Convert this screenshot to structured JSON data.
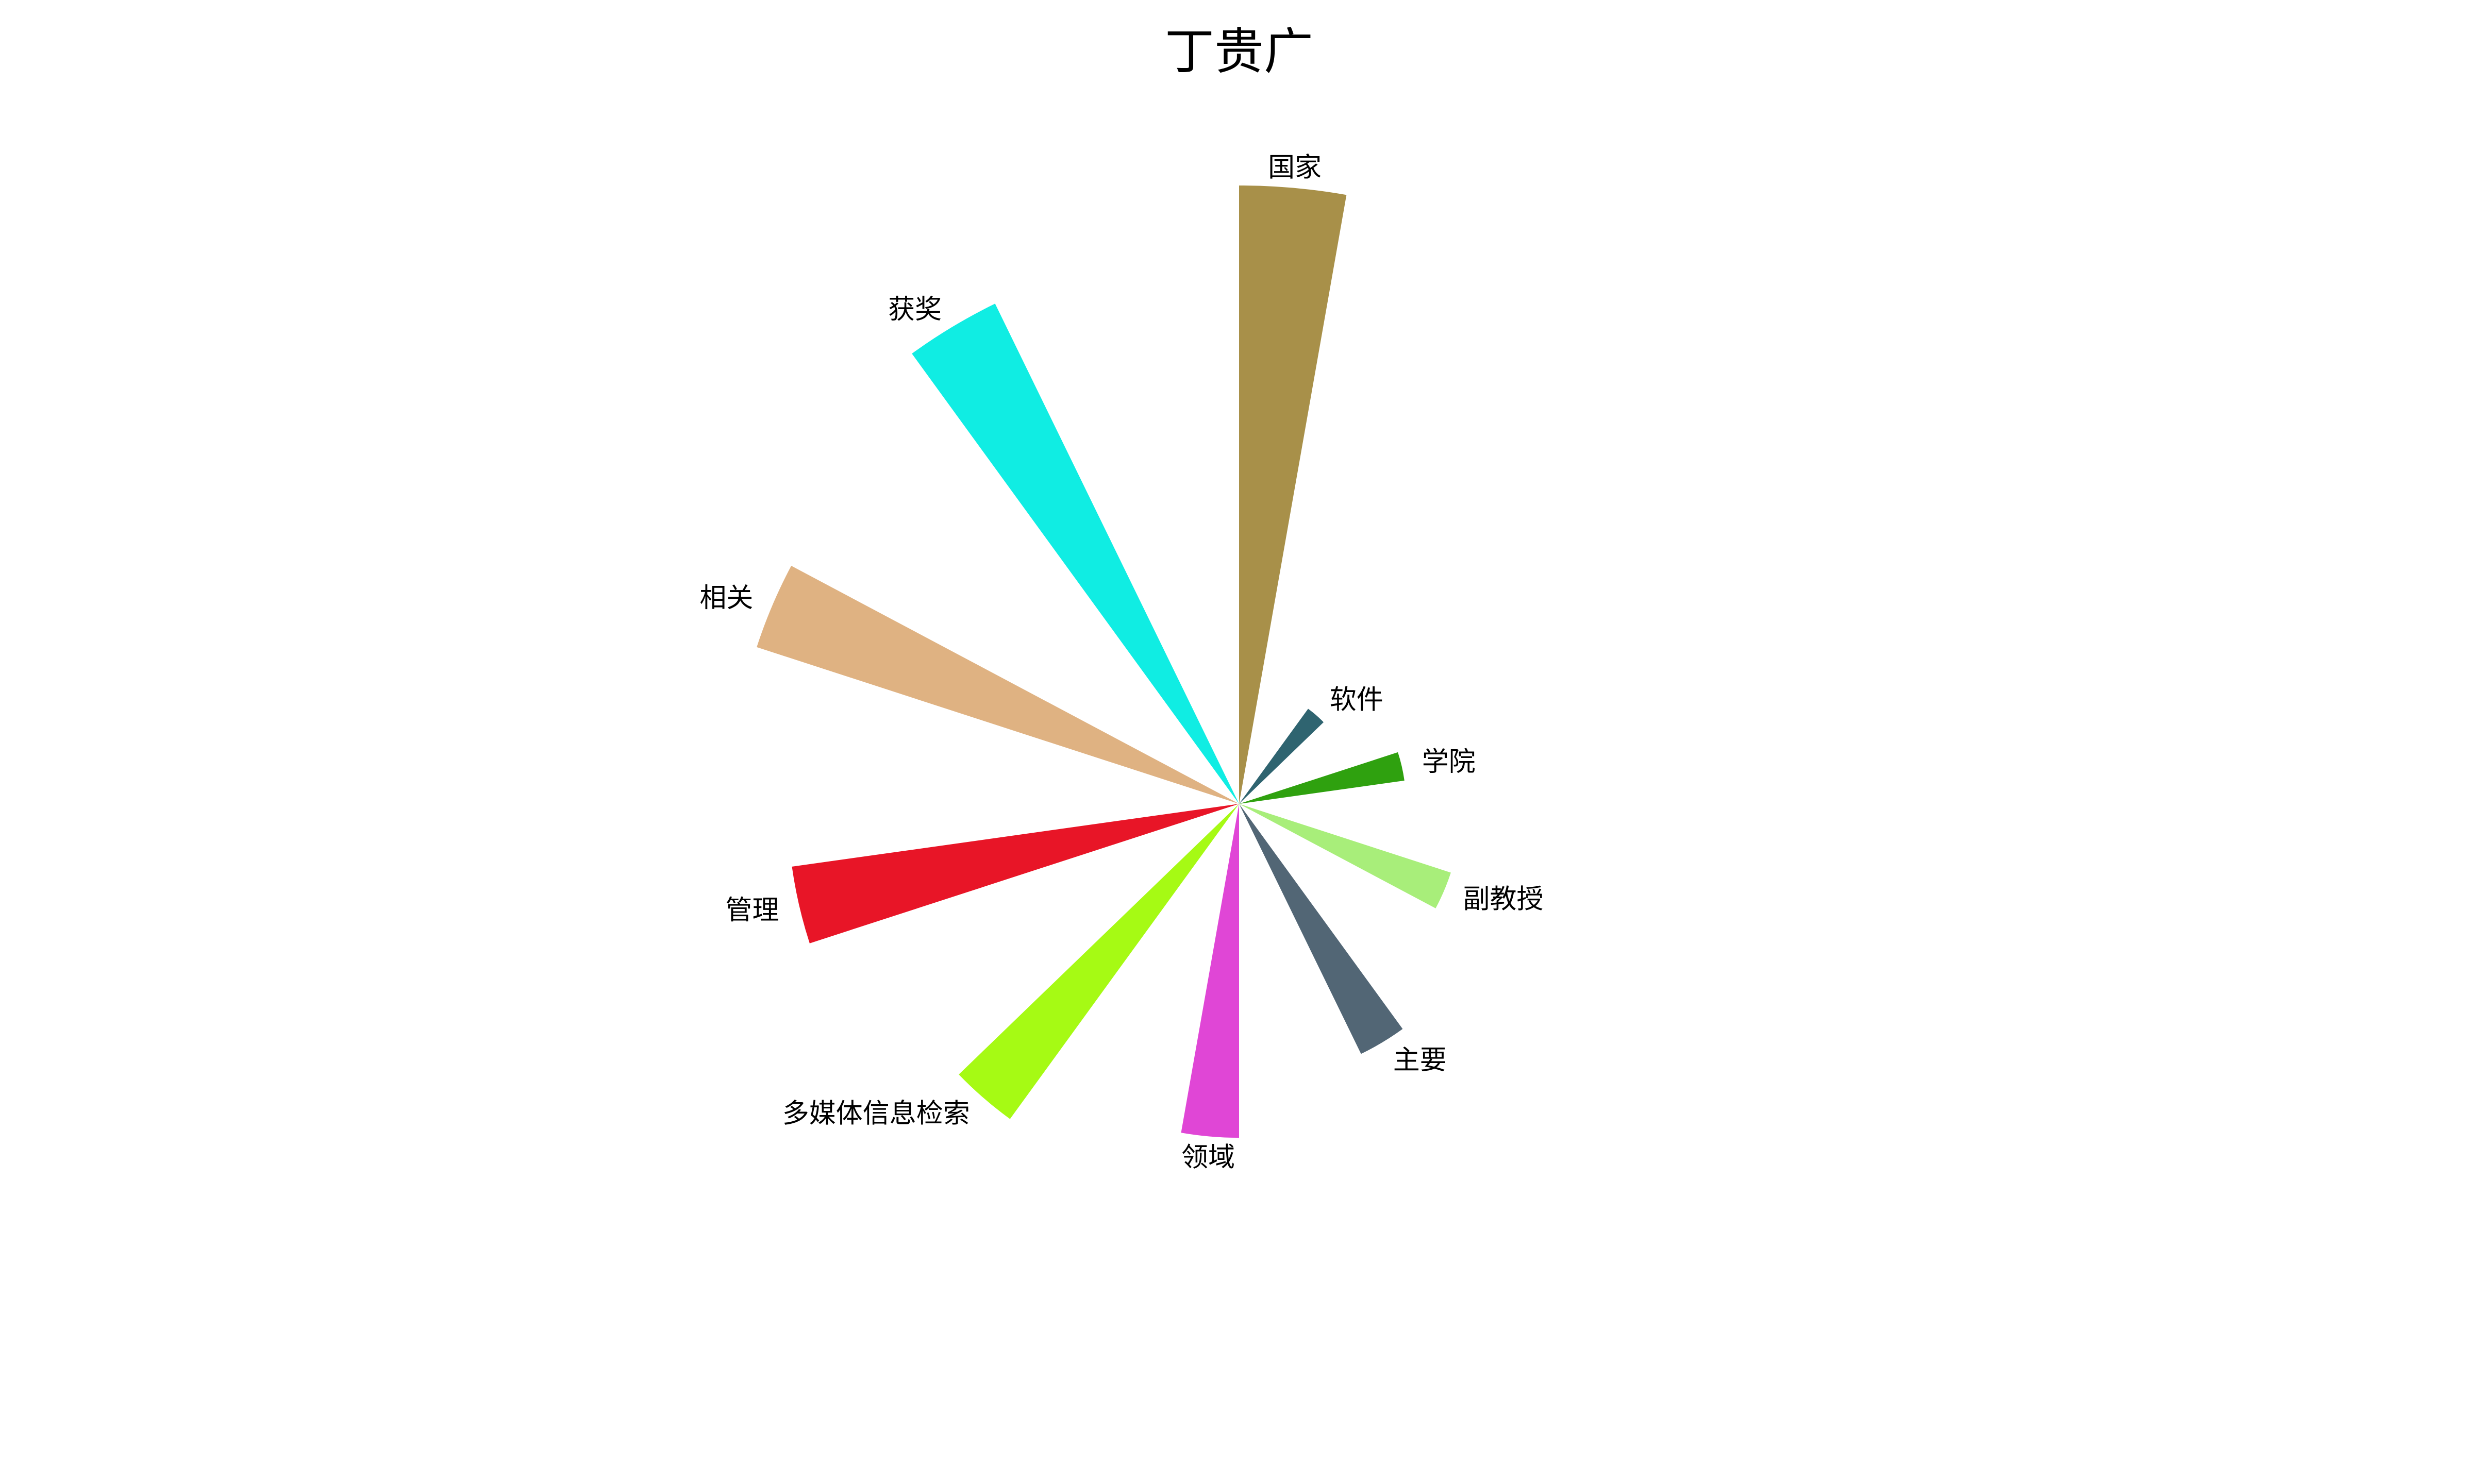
{
  "chart_data": {
    "type": "rose",
    "title": "丁贵广",
    "start_angle_deg": 0,
    "direction": "clockwise",
    "slice_angle_deg": 10,
    "r_max": 1.0,
    "slices": [
      {
        "label": "国家",
        "value": 1.0,
        "color": "#A89049"
      },
      {
        "label": "软件",
        "value": 0.19,
        "color": "#2F6470"
      },
      {
        "label": "学院",
        "value": 0.27,
        "color": "#2FA10F"
      },
      {
        "label": "副教授",
        "value": 0.36,
        "color": "#A8EE7A"
      },
      {
        "label": "主要",
        "value": 0.45,
        "color": "#526675"
      },
      {
        "label": "领域",
        "value": 0.54,
        "color": "#E046D6"
      },
      {
        "label": "多媒体信息检索",
        "value": 0.63,
        "color": "#A6FA14"
      },
      {
        "label": "管理",
        "value": 0.73,
        "color": "#E81527"
      },
      {
        "label": "相关",
        "value": 0.82,
        "color": "#DFB282"
      },
      {
        "label": "获奖",
        "value": 0.9,
        "color": "#10EDE3"
      }
    ]
  }
}
